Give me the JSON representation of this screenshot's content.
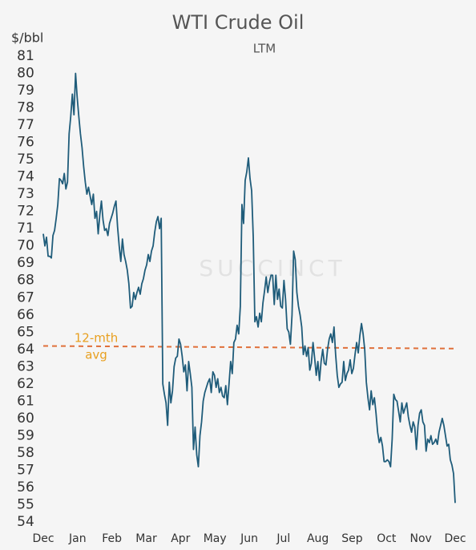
{
  "chart_data": {
    "type": "line",
    "title": "WTI Crude Oil",
    "subtitle": "LTM",
    "y_axis_label": "$/bbl",
    "watermark": "SUCCINCT",
    "x": [
      0,
      1,
      2,
      3,
      4,
      5,
      6,
      7,
      8,
      9,
      10,
      11,
      12,
      13,
      14,
      15,
      16,
      17,
      18,
      19,
      20,
      21,
      22,
      23,
      24,
      25,
      26,
      27,
      28,
      29,
      30,
      31,
      32,
      33,
      34,
      35,
      36,
      37,
      38,
      39,
      40,
      41,
      42,
      43,
      44,
      45,
      46,
      47,
      48,
      49,
      50,
      51,
      52,
      53,
      54,
      55,
      56,
      57,
      58,
      59,
      60,
      61,
      62,
      63,
      64,
      65,
      66,
      67,
      68,
      69,
      70,
      71,
      72,
      73,
      74,
      75,
      76,
      77,
      78,
      79,
      80,
      81,
      82,
      83,
      84,
      85,
      86,
      87,
      88,
      89,
      90,
      91,
      92,
      93,
      94,
      95,
      96,
      97,
      98,
      99,
      100,
      101,
      102,
      103,
      104,
      105,
      106,
      107,
      108,
      109,
      110,
      111,
      112,
      113,
      114,
      115,
      116,
      117,
      118,
      119,
      120,
      121,
      122,
      123,
      124,
      125,
      126,
      127,
      128,
      129,
      130,
      131,
      132,
      133,
      134,
      135,
      136,
      137,
      138,
      139,
      140,
      141,
      142,
      143,
      144,
      145,
      146,
      147,
      148,
      149,
      150,
      151,
      152,
      153,
      154,
      155,
      156,
      157,
      158,
      159,
      160,
      161,
      162,
      163,
      164,
      165,
      166,
      167,
      168,
      169,
      170,
      171,
      172,
      173,
      174,
      175,
      176,
      177,
      178,
      179,
      180,
      181,
      182,
      183,
      184,
      185,
      186,
      187,
      188,
      189,
      190,
      191,
      192,
      193,
      194,
      195,
      196,
      197,
      198,
      199,
      200,
      201,
      202,
      203,
      204,
      205,
      206,
      207,
      208,
      209,
      210,
      211,
      212,
      213,
      214,
      215,
      216,
      217,
      218,
      219,
      220,
      221,
      222,
      223,
      224,
      225,
      226,
      227,
      228,
      229,
      230,
      231,
      232,
      233,
      234,
      235,
      236,
      237,
      238,
      239,
      240,
      241,
      242,
      243,
      244,
      245,
      246,
      247,
      248,
      249,
      250,
      251,
      252,
      253,
      254,
      255
    ],
    "series": [
      {
        "name": "WTI",
        "color": "#1f5c7a",
        "values": [
          70.7,
          70.0,
          70.5,
          69.4,
          69.4,
          69.3,
          70.6,
          70.9,
          71.6,
          72.4,
          73.9,
          73.8,
          73.6,
          74.2,
          73.3,
          73.7,
          76.5,
          77.5,
          78.8,
          77.6,
          80.0,
          78.6,
          77.5,
          76.5,
          75.7,
          74.6,
          73.7,
          73.0,
          73.4,
          72.9,
          72.4,
          73.0,
          71.6,
          72.0,
          70.7,
          71.8,
          72.6,
          71.5,
          70.9,
          71.0,
          70.6,
          71.3,
          71.6,
          71.9,
          72.3,
          72.6,
          71.1,
          70.0,
          69.1,
          70.4,
          69.5,
          69.1,
          68.6,
          67.8,
          66.4,
          66.5,
          67.3,
          66.9,
          67.3,
          67.6,
          67.2,
          67.8,
          68.1,
          68.6,
          68.9,
          69.5,
          69.1,
          69.7,
          70.0,
          70.8,
          71.4,
          71.7,
          71.0,
          71.6,
          62.0,
          61.4,
          60.9,
          59.6,
          62.1,
          60.9,
          61.6,
          63.0,
          63.5,
          63.6,
          64.6,
          64.3,
          63.6,
          62.7,
          63.1,
          61.6,
          63.3,
          62.6,
          61.8,
          58.2,
          59.5,
          57.9,
          57.2,
          59.0,
          59.8,
          61.0,
          61.5,
          61.8,
          62.1,
          62.3,
          61.5,
          62.7,
          62.5,
          61.8,
          62.3,
          61.5,
          61.8,
          61.3,
          61.2,
          61.9,
          60.8,
          62.0,
          63.3,
          62.6,
          64.4,
          64.6,
          65.4,
          64.9,
          66.5,
          72.4,
          71.3,
          73.8,
          74.3,
          75.1,
          73.9,
          73.2,
          70.5,
          65.6,
          65.9,
          65.3,
          66.1,
          65.6,
          66.7,
          67.4,
          68.2,
          67.3,
          67.9,
          68.3,
          68.3,
          66.6,
          68.3,
          66.9,
          67.5,
          66.5,
          66.4,
          68.0,
          66.9,
          65.2,
          65.0,
          64.3,
          66.0,
          69.7,
          69.2,
          67.3,
          66.5,
          66.0,
          65.3,
          63.7,
          64.2,
          63.6,
          64.1,
          62.8,
          63.2,
          64.4,
          63.5,
          62.5,
          63.3,
          62.2,
          63.3,
          64.0,
          63.2,
          63.1,
          64.0,
          64.6,
          64.9,
          64.4,
          65.3,
          63.7,
          62.5,
          61.8,
          62.0,
          62.1,
          63.3,
          62.2,
          62.6,
          62.8,
          63.4,
          62.6,
          62.9,
          63.7,
          64.4,
          63.8,
          64.8,
          65.5,
          64.9,
          64.0,
          62.1,
          61.2,
          60.5,
          61.6,
          60.8,
          61.2,
          60.3,
          59.2,
          58.6,
          58.9,
          58.4,
          57.5,
          57.5,
          57.6,
          57.5,
          57.2,
          58.8,
          61.4,
          61.1,
          61.0,
          60.4,
          59.8,
          60.9,
          60.3,
          60.6,
          60.9,
          60.1,
          59.6,
          59.2,
          59.8,
          59.5,
          58.2,
          59.6,
          60.3,
          60.5,
          59.8,
          59.6,
          58.1,
          58.8,
          58.6,
          59.0,
          58.5,
          58.6,
          58.8,
          58.5,
          59.2,
          59.6,
          60.0,
          59.6,
          59.0,
          58.4,
          58.5,
          57.6,
          57.3,
          56.8,
          55.1
        ]
      }
    ],
    "average": {
      "label": [
        "12-mth",
        "avg"
      ],
      "color": "#e0703a",
      "label_color": "#e8a020",
      "x": [
        0,
        255
      ],
      "values": [
        64.2,
        64.05
      ]
    },
    "xlim": [
      0,
      255
    ],
    "xticks": [
      {
        "value": 0,
        "label": "Dec"
      },
      {
        "value": 21.25,
        "label": "Jan"
      },
      {
        "value": 42.5,
        "label": "Feb"
      },
      {
        "value": 63.75,
        "label": "Mar"
      },
      {
        "value": 85,
        "label": "Apr"
      },
      {
        "value": 106.25,
        "label": "May"
      },
      {
        "value": 127.5,
        "label": "Jun"
      },
      {
        "value": 148.75,
        "label": "Jul"
      },
      {
        "value": 170,
        "label": "Aug"
      },
      {
        "value": 191.25,
        "label": "Sep"
      },
      {
        "value": 212.5,
        "label": "Oct"
      },
      {
        "value": 233.75,
        "label": "Nov"
      },
      {
        "value": 255,
        "label": "Dec"
      }
    ],
    "ylim": [
      54,
      81
    ],
    "yticks": [
      54,
      55,
      56,
      57,
      58,
      59,
      60,
      61,
      62,
      63,
      64,
      65,
      66,
      67,
      68,
      69,
      70,
      71,
      72,
      73,
      74,
      75,
      76,
      77,
      78,
      79,
      80,
      81
    ],
    "grid": false
  }
}
